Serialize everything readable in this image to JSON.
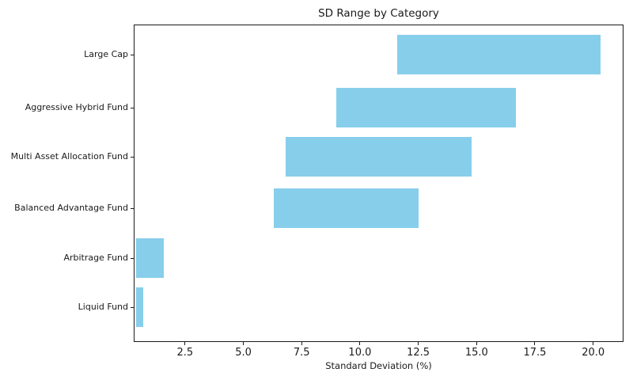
{
  "chart_data": {
    "type": "bar",
    "orientation": "horizontal",
    "title": "SD Range by Category",
    "xlabel": "Standard Deviation (%)",
    "ylabel": "",
    "categories": [
      "Large Cap",
      "Aggressive Hybrid Fund",
      "Multi Asset Allocation Fund",
      "Balanced Advantage Fund",
      "Arbitrage Fund",
      "Liquid Fund"
    ],
    "bars": [
      {
        "category": "Large Cap",
        "low": 11.6,
        "high": 20.3
      },
      {
        "category": "Aggressive Hybrid Fund",
        "low": 9.0,
        "high": 16.7
      },
      {
        "category": "Multi Asset Allocation Fund",
        "low": 6.8,
        "high": 14.8
      },
      {
        "category": "Balanced Advantage Fund",
        "low": 6.3,
        "high": 12.5
      },
      {
        "category": "Arbitrage Fund",
        "low": 0.4,
        "high": 1.6
      },
      {
        "category": "Liquid Fund",
        "low": 0.4,
        "high": 0.7
      }
    ],
    "xlim": [
      0.3,
      21.3
    ],
    "xticks": [
      2.5,
      5.0,
      7.5,
      10.0,
      12.5,
      15.0,
      17.5,
      20.0
    ],
    "xtick_labels": [
      "2.5",
      "5.0",
      "7.5",
      "10.0",
      "12.5",
      "15.0",
      "17.5",
      "20.0"
    ],
    "bar_color": "#87CEEB",
    "axis_color": "#1a1a1a",
    "grid": false,
    "legend": false
  }
}
